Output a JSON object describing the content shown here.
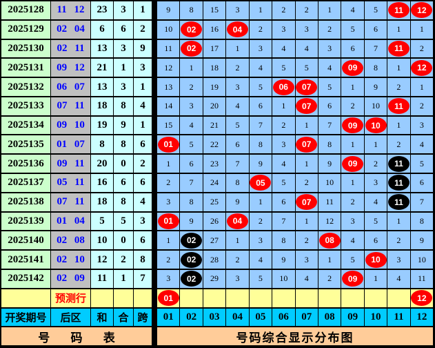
{
  "colors": {
    "period_bg": "#CCFFCC",
    "zone_bg": "#C0C0C0",
    "stat_bg": "#CCFFFF",
    "grid_bg": "#99CCFF",
    "prediction_bg": "#FFFF99",
    "header_bg": "#00CCFF",
    "footer_bg": "#FFCC99",
    "hit_ball": "#FF0000",
    "repeat_ball": "#000000",
    "zone_text": "#0000FF",
    "prediction_text": "#FF0000"
  },
  "left_headers": {
    "period": "开奖期号",
    "zone": "后区",
    "sum": "和",
    "combine": "合",
    "span": "跨"
  },
  "prediction_row": {
    "label": "预测行",
    "red": [
      1,
      12
    ]
  },
  "footer": {
    "left": "号 码 表",
    "right": "号码综合显示分布图"
  },
  "chart_data": {
    "type": "table",
    "title": "号码综合显示分布图",
    "number_headers": [
      "01",
      "02",
      "03",
      "04",
      "05",
      "06",
      "07",
      "08",
      "09",
      "10",
      "11",
      "12"
    ],
    "rows": [
      {
        "period": "2025128",
        "zone": "11 12",
        "sum": "23",
        "combine": "3",
        "span": "1",
        "miss": [
          "9",
          "8",
          "15",
          "3",
          "1",
          "2",
          "2",
          "1",
          "4",
          "5",
          "11",
          "12"
        ],
        "red": [
          11,
          12
        ],
        "black": []
      },
      {
        "period": "2025129",
        "zone": "02 04",
        "sum": "6",
        "combine": "6",
        "span": "2",
        "miss": [
          "10",
          "02",
          "16",
          "04",
          "2",
          "3",
          "3",
          "2",
          "5",
          "6",
          "1",
          "1"
        ],
        "red": [
          2,
          4
        ],
        "black": []
      },
      {
        "period": "2025130",
        "zone": "02 11",
        "sum": "13",
        "combine": "3",
        "span": "9",
        "miss": [
          "11",
          "02",
          "17",
          "1",
          "3",
          "4",
          "4",
          "3",
          "6",
          "7",
          "11",
          "2"
        ],
        "red": [
          2,
          11
        ],
        "black": []
      },
      {
        "period": "2025131",
        "zone": "09 12",
        "sum": "21",
        "combine": "1",
        "span": "3",
        "miss": [
          "12",
          "1",
          "18",
          "2",
          "4",
          "5",
          "5",
          "4",
          "09",
          "8",
          "1",
          "12"
        ],
        "red": [
          9,
          12
        ],
        "black": []
      },
      {
        "period": "2025132",
        "zone": "06 07",
        "sum": "13",
        "combine": "3",
        "span": "1",
        "miss": [
          "13",
          "2",
          "19",
          "3",
          "5",
          "06",
          "07",
          "5",
          "1",
          "9",
          "2",
          "1"
        ],
        "red": [
          6,
          7
        ],
        "black": []
      },
      {
        "period": "2025133",
        "zone": "07 11",
        "sum": "18",
        "combine": "8",
        "span": "4",
        "miss": [
          "14",
          "3",
          "20",
          "4",
          "6",
          "1",
          "07",
          "6",
          "2",
          "10",
          "11",
          "2"
        ],
        "red": [
          7,
          11
        ],
        "black": []
      },
      {
        "period": "2025134",
        "zone": "09 10",
        "sum": "19",
        "combine": "9",
        "span": "1",
        "miss": [
          "15",
          "4",
          "21",
          "5",
          "7",
          "2",
          "1",
          "7",
          "09",
          "10",
          "1",
          "3"
        ],
        "red": [
          9,
          10
        ],
        "black": []
      },
      {
        "period": "2025135",
        "zone": "01 07",
        "sum": "8",
        "combine": "8",
        "span": "6",
        "miss": [
          "01",
          "5",
          "22",
          "6",
          "8",
          "3",
          "07",
          "8",
          "1",
          "1",
          "2",
          "4"
        ],
        "red": [
          1,
          7
        ],
        "black": []
      },
      {
        "period": "2025136",
        "zone": "09 11",
        "sum": "20",
        "combine": "0",
        "span": "2",
        "miss": [
          "1",
          "6",
          "23",
          "7",
          "9",
          "4",
          "1",
          "9",
          "09",
          "2",
          "11",
          "5"
        ],
        "red": [
          9
        ],
        "black": [
          11
        ]
      },
      {
        "period": "2025137",
        "zone": "05 11",
        "sum": "16",
        "combine": "6",
        "span": "6",
        "miss": [
          "2",
          "7",
          "24",
          "8",
          "05",
          "5",
          "2",
          "10",
          "1",
          "3",
          "11",
          "6"
        ],
        "red": [
          5
        ],
        "black": [
          11
        ]
      },
      {
        "period": "2025138",
        "zone": "07 11",
        "sum": "18",
        "combine": "8",
        "span": "4",
        "miss": [
          "3",
          "8",
          "25",
          "9",
          "1",
          "6",
          "07",
          "11",
          "2",
          "4",
          "11",
          "7"
        ],
        "red": [
          7
        ],
        "black": [
          11
        ]
      },
      {
        "period": "2025139",
        "zone": "01 04",
        "sum": "5",
        "combine": "5",
        "span": "3",
        "miss": [
          "01",
          "9",
          "26",
          "04",
          "2",
          "7",
          "1",
          "12",
          "3",
          "5",
          "1",
          "8"
        ],
        "red": [
          1,
          4
        ],
        "black": []
      },
      {
        "period": "2025140",
        "zone": "02 08",
        "sum": "10",
        "combine": "0",
        "span": "6",
        "miss": [
          "1",
          "02",
          "27",
          "1",
          "3",
          "8",
          "2",
          "08",
          "4",
          "6",
          "2",
          "9"
        ],
        "red": [
          8
        ],
        "black": [
          2
        ]
      },
      {
        "period": "2025141",
        "zone": "02 10",
        "sum": "12",
        "combine": "2",
        "span": "8",
        "miss": [
          "2",
          "02",
          "28",
          "2",
          "4",
          "9",
          "3",
          "1",
          "5",
          "10",
          "3",
          "10"
        ],
        "red": [
          10
        ],
        "black": [
          2
        ]
      },
      {
        "period": "2025142",
        "zone": "02 09",
        "sum": "11",
        "combine": "1",
        "span": "7",
        "miss": [
          "3",
          "02",
          "29",
          "3",
          "5",
          "10",
          "4",
          "2",
          "09",
          "1",
          "4",
          "11"
        ],
        "red": [
          9
        ],
        "black": [
          2
        ]
      }
    ]
  }
}
